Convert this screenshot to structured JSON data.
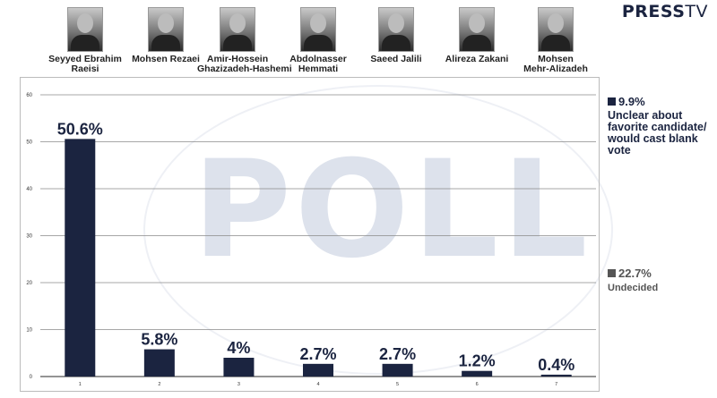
{
  "brand": {
    "name_bold": "PRESS",
    "name_light": "TV"
  },
  "watermark": "POLL",
  "candidates": [
    {
      "name_line1": "Seyyed Ebrahim",
      "name_line2": "Raeisi"
    },
    {
      "name_line1": "Mohsen Rezaei",
      "name_line2": ""
    },
    {
      "name_line1": "Amir-Hossein",
      "name_line2": "Ghazizadeh-Hashemi"
    },
    {
      "name_line1": "Abdolnasser",
      "name_line2": "Hemmati"
    },
    {
      "name_line1": "Saeed Jalili",
      "name_line2": ""
    },
    {
      "name_line1": "Alireza Zakani",
      "name_line2": ""
    },
    {
      "name_line1": "Mohsen",
      "name_line2": "Mehr-Alizadeh"
    }
  ],
  "legend": [
    {
      "value": "9.9%",
      "text": "Unclear about favorite candidate/ would cast blank vote",
      "color": "#1b2440"
    },
    {
      "value": "22.7%",
      "text": "Undecided",
      "color": "#555555"
    }
  ],
  "chart_data": {
    "type": "bar",
    "categories": [
      "1",
      "2",
      "3",
      "4",
      "5",
      "6",
      "7"
    ],
    "values": [
      50.6,
      5.8,
      4,
      2.7,
      2.7,
      1.2,
      0.4
    ],
    "data_labels": [
      "50.6%",
      "5.8%",
      "4%",
      "2.7%",
      "2.7%",
      "1.2%",
      "0.4%"
    ],
    "ylim": [
      0,
      60
    ],
    "yticks": [
      0,
      10,
      20,
      30,
      40,
      50,
      60
    ],
    "grid": true,
    "bar_color": "#1b2440",
    "title": "",
    "xlabel": "",
    "ylabel": ""
  }
}
